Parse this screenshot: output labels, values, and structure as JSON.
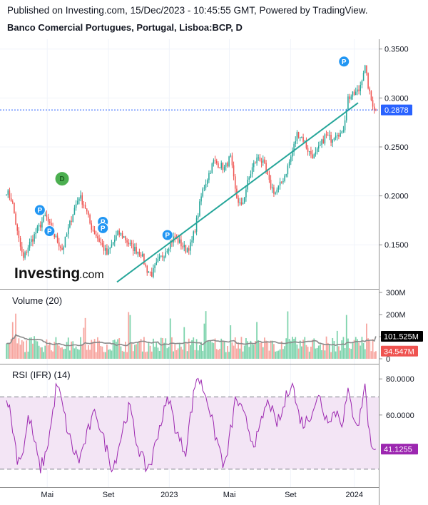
{
  "header": {
    "published": "Published on Investing.com, 15/Dec/2023 - 10:45:55 GMT, Powered by TradingView.",
    "symbol": "Banco Comercial Portugues, Portugal, Lisboa:BCP, D"
  },
  "logo": {
    "main": "Investing",
    "sub": ".com"
  },
  "colors": {
    "up": "#26a69a",
    "down": "#ef5350",
    "trendline": "#26a69a",
    "price_line": "#2962ff",
    "volume_up": "#7dd3ac",
    "volume_down": "#f7a59f",
    "volume_ma": "#8a8a8a",
    "rsi_line": "#9c27b0",
    "rsi_band": "#f3e5f5",
    "badge_blue": "#2196f3",
    "badge_green": "#4caf50"
  },
  "chart_data": [
    {
      "type": "candlestick",
      "title": "Banco Comercial Portugues, Portugal, Lisboa:BCP, D",
      "x_tick_labels": [
        "Mai",
        "Set",
        "2023",
        "Mai",
        "Set",
        "2024"
      ],
      "y_tick_labels": [
        "0.3500",
        "0.3000",
        "0.2500",
        "0.2000",
        "0.1500"
      ],
      "ylim": [
        0.105,
        0.36
      ],
      "last_price": 0.2878,
      "last_price_label": "0.2878",
      "trendline": {
        "from": 0.112,
        "to": 0.295
      },
      "close_path": [
        0.205,
        0.195,
        0.16,
        0.135,
        0.15,
        0.16,
        0.17,
        0.18,
        0.165,
        0.155,
        0.145,
        0.165,
        0.185,
        0.2,
        0.19,
        0.17,
        0.16,
        0.15,
        0.14,
        0.152,
        0.162,
        0.158,
        0.15,
        0.145,
        0.142,
        0.125,
        0.12,
        0.132,
        0.14,
        0.15,
        0.158,
        0.152,
        0.145,
        0.15,
        0.175,
        0.205,
        0.22,
        0.235,
        0.232,
        0.228,
        0.24,
        0.2,
        0.188,
        0.212,
        0.23,
        0.24,
        0.232,
        0.212,
        0.203,
        0.212,
        0.225,
        0.243,
        0.265,
        0.258,
        0.245,
        0.24,
        0.25,
        0.262,
        0.258,
        0.266,
        0.262,
        0.3,
        0.303,
        0.308,
        0.333,
        0.3,
        0.287
      ],
      "signals": [
        {
          "label": "D",
          "kind": "dividend",
          "at": 0.152,
          "value": 0.2175
        },
        {
          "label": "P",
          "kind": "pattern",
          "at": 0.092,
          "value": 0.1855
        },
        {
          "label": "P",
          "kind": "pattern",
          "at": 0.118,
          "value": 0.164
        },
        {
          "label": "P",
          "kind": "pattern",
          "at": 0.262,
          "value": 0.1735
        },
        {
          "label": "P",
          "kind": "pattern",
          "at": 0.262,
          "value": 0.167
        },
        {
          "label": "P",
          "kind": "pattern",
          "at": 0.436,
          "value": 0.16
        },
        {
          "label": "P",
          "kind": "pattern",
          "at": 0.912,
          "value": 0.3372
        }
      ]
    },
    {
      "type": "bar",
      "title": "Volume (20)",
      "y_tick_labels": [
        "300M",
        "200M",
        "100M",
        "0"
      ],
      "ylim": [
        0,
        300
      ],
      "last_value_label": "101.525M",
      "last_volume_label": "34.547M",
      "ma_value": 101.525,
      "last_volume": 34.547
    },
    {
      "type": "line",
      "title": "RSI (IFR) (14)",
      "y_tick_labels": [
        "80.0000",
        "60.0000"
      ],
      "ylim": [
        20,
        88
      ],
      "upper_band": 70,
      "lower_band": 30,
      "last_value": 41.1255,
      "last_value_label": "41.1255",
      "rsi_path": [
        72,
        55,
        35,
        40,
        60,
        45,
        30,
        38,
        55,
        78,
        65,
        50,
        40,
        35,
        45,
        55,
        62,
        50,
        40,
        30,
        42,
        55,
        65,
        48,
        38,
        30,
        35,
        50,
        60,
        70,
        55,
        45,
        40,
        62,
        82,
        76,
        68,
        52,
        42,
        30,
        50,
        70,
        62,
        55,
        45,
        48,
        62,
        68,
        55,
        58,
        70,
        80,
        62,
        55,
        58,
        66,
        70,
        58,
        60,
        62,
        56,
        72,
        60,
        55,
        78,
        45,
        41
      ]
    }
  ]
}
